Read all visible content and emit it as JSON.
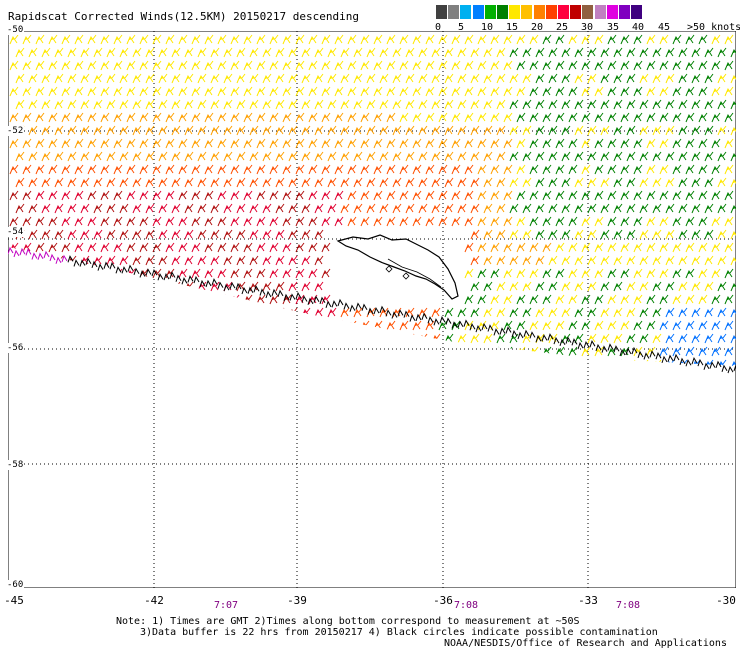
{
  "title": "Rapidscat Corrected Winds(12.5KM) 20150217 descending",
  "legend": {
    "swatches": [
      "#404040",
      "#808080",
      "#00b0f0",
      "#0080ff",
      "#00b000",
      "#008000",
      "#ffe800",
      "#ffc000",
      "#ff8000",
      "#ff4000",
      "#ff0040",
      "#c00000",
      "#906040",
      "#c080c0",
      "#e000e0",
      "#8000c0",
      "#400080"
    ],
    "labels": [
      "0",
      "5",
      "10",
      "15",
      "20",
      "25",
      "30",
      "35",
      "40",
      "45",
      ">50 knots"
    ],
    "categories": [
      {
        "range": "0-10",
        "color": "#808080"
      },
      {
        "range": "10-15",
        "color": "#0070ff"
      },
      {
        "range": "15-20",
        "color": "#008000"
      },
      {
        "range": "20-25",
        "color": "#ffe800"
      },
      {
        "range": "25-30",
        "color": "#ffa000"
      },
      {
        "range": "30-35",
        "color": "#ff5000"
      },
      {
        "range": "35-40",
        "color": "#e00030"
      },
      {
        "range": "40-45",
        "color": "#b01010"
      },
      {
        "range": "50+",
        "color": "#c000c0"
      }
    ]
  },
  "axes": {
    "x_ticks": [
      "-45",
      "-42",
      "-39",
      "-36",
      "-33",
      "-30"
    ],
    "y_ticks": [
      "-50",
      "-52",
      "-54",
      "-56",
      "-58",
      "-60"
    ],
    "lon_range": [
      -45,
      -30
    ],
    "lat_range": [
      -60,
      -50
    ],
    "grid": "dotted"
  },
  "times": [
    "7:07",
    "7:08",
    "7:08"
  ],
  "notes": [
    "Note: 1) Times are GMT 2)Times along bottom correspond to measurement at ~50S",
    "3)Data buffer is 22 hrs from 20150217 4) Black circles indicate possible contamination",
    "NOAA/NESDIS/Office of Research and Applications"
  ]
}
